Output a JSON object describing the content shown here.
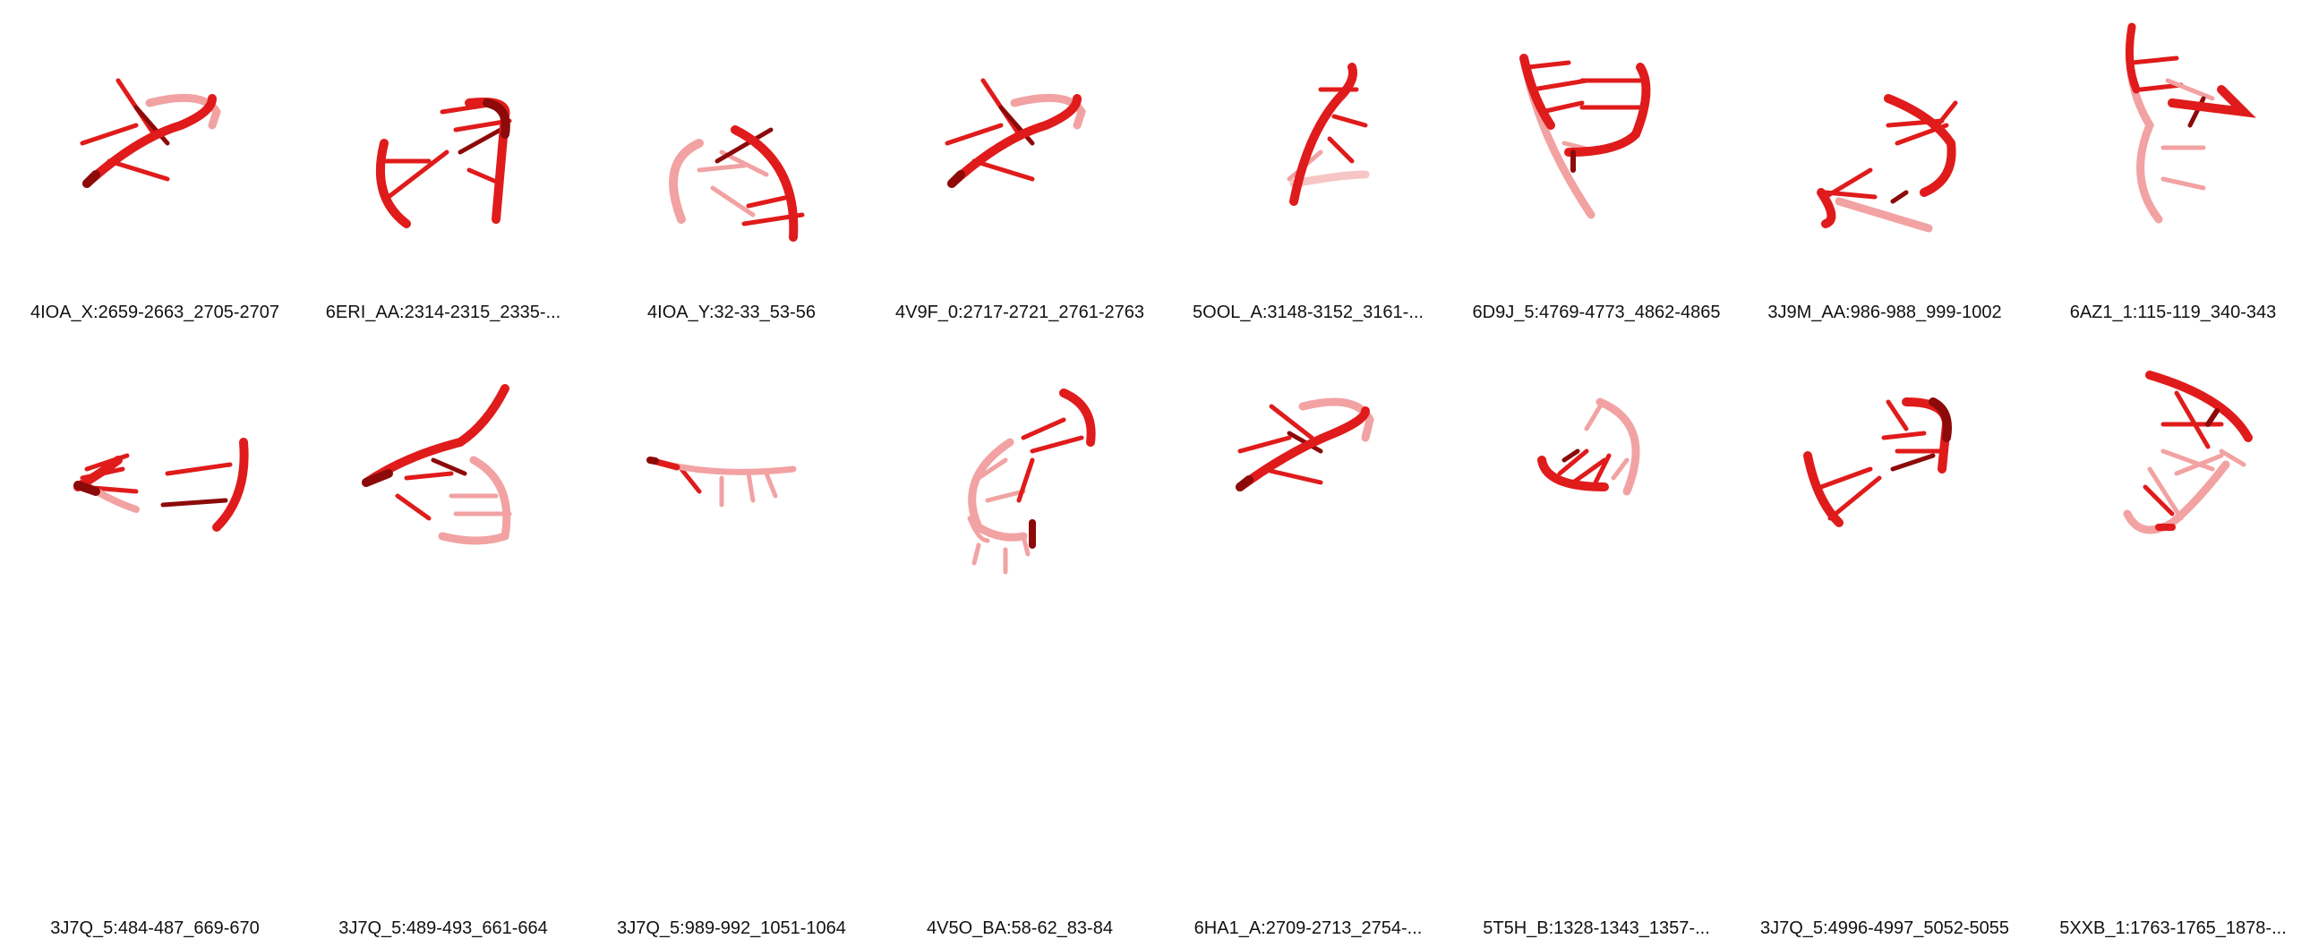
{
  "colors": {
    "strand_main": "#e01b1b",
    "strand_dark": "#8c0a0a",
    "strand_light": "#f2a2a2",
    "strand_pale": "#f7c5c5",
    "label_text": "#111111"
  },
  "structures": [
    {
      "label": "4IOA_X:2659-2663_2705-2707"
    },
    {
      "label": "6ERI_AA:2314-2315_2335-..."
    },
    {
      "label": "4IOA_Y:32-33_53-56"
    },
    {
      "label": "4V9F_0:2717-2721_2761-2763"
    },
    {
      "label": "5OOL_A:3148-3152_3161-..."
    },
    {
      "label": "6D9J_5:4769-4773_4862-4865"
    },
    {
      "label": "3J9M_AA:986-988_999-1002"
    },
    {
      "label": "6AZ1_1:115-119_340-343"
    },
    {
      "label": "3J7Q_5:484-487_669-670"
    },
    {
      "label": "3J7Q_5:489-493_661-664"
    },
    {
      "label": "3J7Q_5:989-992_1051-1064"
    },
    {
      "label": "4V5O_BA:58-62_83-84"
    },
    {
      "label": "6HA1_A:2709-2713_2754-..."
    },
    {
      "label": "5T5H_B:1328-1343_1357-..."
    },
    {
      "label": "3J7Q_5:4996-4997_5052-5055"
    },
    {
      "label": "5XXB_1:1763-1765_1878-..."
    }
  ]
}
